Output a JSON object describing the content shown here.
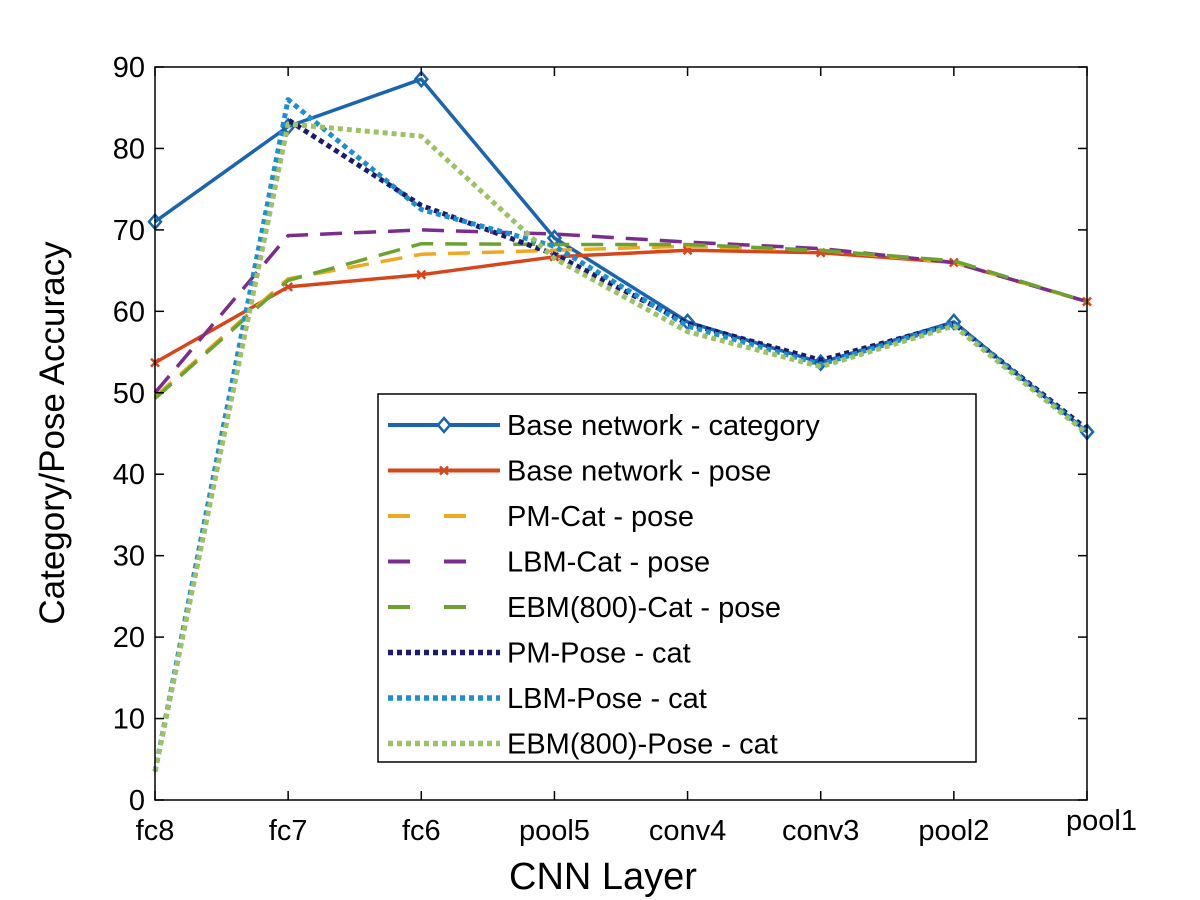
{
  "chart_data": {
    "type": "line",
    "title": "",
    "xlabel": "CNN Layer",
    "ylabel": "Category/Pose Accuracy",
    "categories": [
      "fc8",
      "fc7",
      "fc6",
      "pool5",
      "conv4",
      "conv3",
      "pool2",
      "pool1"
    ],
    "ylim": [
      0,
      90
    ],
    "yticks": [
      0,
      10,
      20,
      30,
      40,
      50,
      60,
      70,
      80,
      90
    ],
    "grid": false,
    "legend_position": "lower-center",
    "series": [
      {
        "name": "Base network - category",
        "color": "#1a64b0",
        "style": "solid",
        "marker": "diamond",
        "values": [
          71,
          82.7,
          88.5,
          69,
          58.7,
          53.7,
          58.7,
          45.2
        ]
      },
      {
        "name": "Base network - pose",
        "color": "#d6461a",
        "style": "solid",
        "marker": "x",
        "values": [
          53.7,
          63,
          64.5,
          66.7,
          67.5,
          67.2,
          66,
          61.2
        ]
      },
      {
        "name": "PM-Cat - pose",
        "color": "#f0a81e",
        "style": "dashed",
        "marker": "none",
        "values": [
          49.5,
          64,
          67,
          67.5,
          68,
          67.5,
          66,
          61.2
        ]
      },
      {
        "name": "LBM-Cat - pose",
        "color": "#7b2d8e",
        "style": "dashed",
        "marker": "none",
        "values": [
          50,
          69.3,
          70,
          69.5,
          68.5,
          67.7,
          66,
          61.2
        ]
      },
      {
        "name": "EBM(800)-Cat - pose",
        "color": "#6ba330",
        "style": "dashed",
        "marker": "none",
        "values": [
          49.3,
          63.8,
          68.3,
          68.2,
          68.2,
          67.5,
          66.2,
          61.2
        ]
      },
      {
        "name": "PM-Pose - cat",
        "color": "#1b1a6e",
        "style": "dotted",
        "marker": "none",
        "values": [
          3.5,
          83.5,
          73,
          67,
          58.5,
          54,
          58.5,
          45.5
        ]
      },
      {
        "name": "LBM-Pose - cat",
        "color": "#1d8fd0",
        "style": "dotted",
        "marker": "none",
        "values": [
          3.5,
          86,
          72.5,
          68,
          58.2,
          53.5,
          58.5,
          45.2
        ]
      },
      {
        "name": "EBM(800)-Pose - cat",
        "color": "#9cc264",
        "style": "dotted",
        "marker": "none",
        "values": [
          3.5,
          83,
          81.5,
          66.5,
          57.5,
          53.2,
          58.2,
          45
        ]
      }
    ]
  }
}
